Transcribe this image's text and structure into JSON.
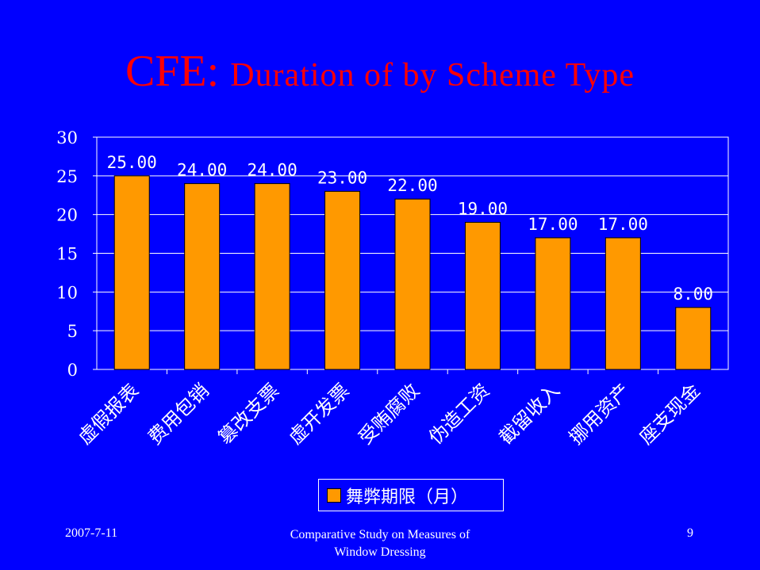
{
  "title": {
    "prefix": "CFE: ",
    "rest": "Duration of by Scheme Type"
  },
  "chart_data": {
    "type": "bar",
    "categories": [
      "虚假报表",
      "费用包销",
      "篡改支票",
      "虚开发票",
      "受贿腐败",
      "伪造工资",
      "截留收入",
      "挪用资产",
      "座支现金"
    ],
    "series": [
      {
        "name": "舞弊期限（月）",
        "values": [
          25.0,
          24.0,
          24.0,
          23.0,
          22.0,
          19.0,
          17.0,
          17.0,
          8.0
        ]
      }
    ],
    "value_labels": [
      "25.00",
      "24.00",
      "24.00",
      "23.00",
      "22.00",
      "19.00",
      "17.00",
      "17.00",
      "8.00"
    ],
    "yticks": [
      "0",
      "5",
      "10",
      "15",
      "20",
      "25",
      "30"
    ],
    "ylim": [
      0,
      30
    ],
    "grid": true,
    "legend_position": "bottom",
    "colors": {
      "background": "#0000FF",
      "bar": "#FF9900",
      "bar_edge": "#000000",
      "text": "#FFFFFF",
      "title": "#FF0000",
      "grid": "#FFFFFF"
    }
  },
  "footer": {
    "date": "2007-7-11",
    "center_line1": "Comparative Study on Measures of",
    "center_line2": "Window Dressing",
    "page": "9"
  }
}
